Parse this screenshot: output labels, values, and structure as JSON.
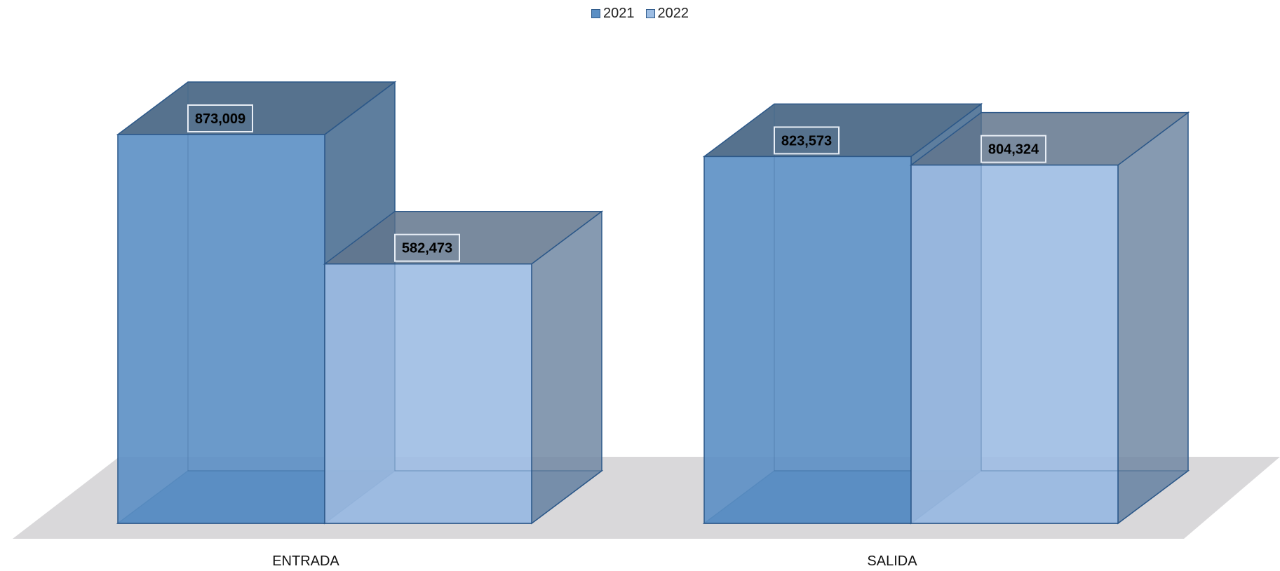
{
  "chart_data": {
    "type": "bar",
    "categories": [
      "ENTRADA",
      "SALIDA"
    ],
    "series": [
      {
        "name": "2021",
        "values": [
          873009,
          823573
        ],
        "value_labels": [
          "873,009",
          "823,573"
        ],
        "color": "#5b8fc4"
      },
      {
        "name": "2022",
        "values": [
          582473,
          804324
        ],
        "value_labels": [
          "582,473",
          "804,324"
        ],
        "color": "#9dbde3"
      }
    ],
    "ylim": [
      0,
      873009
    ],
    "grid": false,
    "legend_position": "top-center",
    "style": "3d-clustered-column",
    "floor_color": "#d9d8da"
  }
}
